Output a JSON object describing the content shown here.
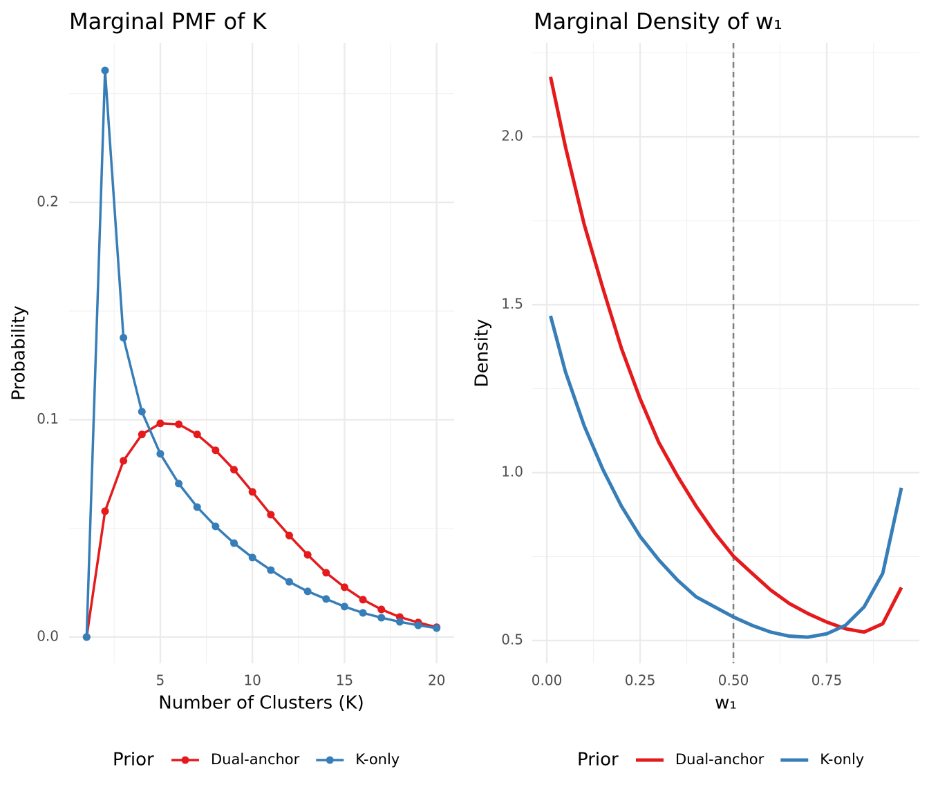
{
  "chart_data": [
    {
      "type": "line",
      "title": "Marginal PMF of K",
      "x_label": "Number of Clusters (K)",
      "y_label": "Probability",
      "x": [
        1,
        2,
        3,
        4,
        5,
        6,
        7,
        8,
        9,
        10,
        11,
        12,
        13,
        14,
        15,
        16,
        17,
        18,
        19,
        20
      ],
      "series": [
        {
          "name": "Dual-anchor",
          "color": "#e41a1c",
          "values": [
            0,
            0.0579,
            0.0811,
            0.0932,
            0.0983,
            0.0979,
            0.0932,
            0.0859,
            0.077,
            0.0668,
            0.0563,
            0.0467,
            0.0378,
            0.0296,
            0.0229,
            0.0172,
            0.0127,
            0.0092,
            0.0067,
            0.0045
          ]
        },
        {
          "name": "K-only",
          "color": "#377eb8",
          "values": [
            0,
            0.2607,
            0.1377,
            0.1037,
            0.0843,
            0.0706,
            0.0598,
            0.0509,
            0.0432,
            0.0366,
            0.0308,
            0.0254,
            0.021,
            0.0175,
            0.014,
            0.0111,
            0.0089,
            0.007,
            0.0054,
            0.0041
          ]
        }
      ],
      "markers": true,
      "xlim": [
        0.05,
        20.95
      ],
      "xticks": [
        5,
        10,
        15,
        20
      ],
      "x_minor_ticks": [
        2.5,
        7.5,
        12.5,
        17.5
      ],
      "ylim": [
        -0.0121,
        0.2734
      ],
      "yticks": [
        {
          "value": 0,
          "label": "0.0"
        },
        0.1,
        0.2
      ],
      "y_minor_ticks": [
        0.05,
        0.15,
        0.25
      ],
      "grid": true,
      "legend_title": "Prior",
      "legend_position": "bottom"
    },
    {
      "type": "line",
      "title": "Marginal Density of w₁",
      "x_label": "w₁",
      "y_label": "Density",
      "x": [
        0.01,
        0.05,
        0.1,
        0.15,
        0.2,
        0.25,
        0.3,
        0.35,
        0.4,
        0.45,
        0.5,
        0.55,
        0.6,
        0.65,
        0.7,
        0.75,
        0.8,
        0.85,
        0.9,
        0.95
      ],
      "series": [
        {
          "name": "Dual-anchor",
          "color": "#e41a1c",
          "values": [
            2.179,
            1.97,
            1.74,
            1.55,
            1.37,
            1.22,
            1.09,
            0.99,
            0.9,
            0.82,
            0.751,
            0.7,
            0.65,
            0.61,
            0.58,
            0.555,
            0.535,
            0.525,
            0.55,
            0.658
          ]
        },
        {
          "name": "K-only",
          "color": "#377eb8",
          "values": [
            1.467,
            1.3,
            1.14,
            1.01,
            0.9,
            0.81,
            0.74,
            0.68,
            0.63,
            0.6,
            0.57,
            0.545,
            0.525,
            0.513,
            0.51,
            0.52,
            0.545,
            0.6,
            0.7,
            0.955
          ]
        }
      ],
      "markers": false,
      "vline": 0.5,
      "xlim": [
        -0.039,
        0.998
      ],
      "xticks": [
        {
          "value": 0,
          "label": "0.00"
        },
        0.25,
        {
          "value": 0.5,
          "label": "0.50"
        },
        0.75
      ],
      "x_minor_ticks": [
        0.125,
        0.375,
        0.625,
        0.875
      ],
      "ylim": [
        0.432,
        2.28
      ],
      "yticks": [
        0.5,
        {
          "value": 1,
          "label": "1.0"
        },
        1.5,
        {
          "value": 2,
          "label": "2.0"
        }
      ],
      "y_minor_ticks": [
        0.75,
        1.25,
        1.75,
        2.25
      ],
      "grid": true,
      "legend_title": "Prior",
      "legend_position": "bottom"
    }
  ]
}
